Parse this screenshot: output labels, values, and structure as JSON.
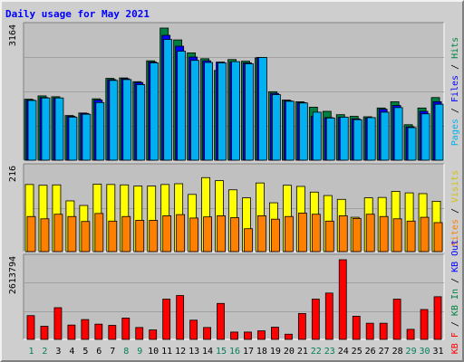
{
  "chart_data": [
    {
      "type": "bar",
      "title": "Daily usage for May 2021",
      "categories": [
        "1",
        "2",
        "3",
        "4",
        "5",
        "6",
        "7",
        "8",
        "9",
        "10",
        "11",
        "12",
        "13",
        "14",
        "15",
        "16",
        "17",
        "18",
        "19",
        "20",
        "21",
        "22",
        "23",
        "24",
        "25",
        "26",
        "27",
        "28",
        "29",
        "30",
        "31"
      ],
      "weekend_days": [
        "1",
        "2",
        "8",
        "9",
        "15",
        "16",
        "22",
        "23",
        "29",
        "30"
      ],
      "ymax_label": "3164",
      "ylim": [
        0,
        3164
      ],
      "y_axis_labels": [
        "Pages",
        "Files",
        "Hits"
      ],
      "series": [
        {
          "name": "Hits",
          "color": "#008040",
          "values": [
            1460,
            1540,
            1520,
            1070,
            1130,
            1470,
            1960,
            1970,
            1880,
            2380,
            3164,
            2880,
            2570,
            2430,
            2150,
            2410,
            2370,
            2450,
            1640,
            1440,
            1400,
            1270,
            1170,
            1090,
            1050,
            1040,
            1250,
            1400,
            850,
            1250,
            1500
          ]
        },
        {
          "name": "Files",
          "color": "#0000ff",
          "values": [
            1440,
            1500,
            1490,
            1050,
            1120,
            1440,
            1930,
            1950,
            1860,
            2350,
            2990,
            2730,
            2470,
            2380,
            2350,
            2350,
            2330,
            2460,
            1600,
            1420,
            1380,
            1050,
            1020,
            1030,
            990,
            1010,
            1220,
            1310,
            800,
            1170,
            1400
          ]
        },
        {
          "name": "Pages",
          "color": "#00b0f0",
          "values": [
            1430,
            1490,
            1490,
            1030,
            1100,
            1380,
            1910,
            1930,
            1810,
            2330,
            2890,
            2610,
            2390,
            2340,
            2330,
            2360,
            2310,
            2460,
            1570,
            1410,
            1370,
            1150,
            1010,
            1030,
            970,
            1020,
            1150,
            1260,
            780,
            1110,
            1340
          ]
        }
      ]
    },
    {
      "type": "bar",
      "ymax_label": "216",
      "ylim": [
        0,
        216
      ],
      "y_axis_labels": [
        "Visits",
        "Sites"
      ],
      "series": [
        {
          "name": "Visits",
          "color": "#ffff00",
          "values": [
            176,
            174,
            175,
            133,
            121,
            177,
            176,
            175,
            172,
            172,
            176,
            178,
            150,
            194,
            186,
            162,
            141,
            180,
            128,
            174,
            171,
            156,
            147,
            137,
            90,
            141,
            142,
            158,
            154,
            152,
            132
          ]
        },
        {
          "name": "Sites",
          "color": "#ff8000",
          "values": [
            92,
            86,
            98,
            92,
            79,
            100,
            80,
            92,
            82,
            82,
            94,
            97,
            88,
            91,
            94,
            89,
            60,
            94,
            85,
            92,
            101,
            98,
            80,
            94,
            87,
            98,
            92,
            86,
            80,
            90,
            76
          ]
        }
      ]
    },
    {
      "type": "bar",
      "ymax_label": "2613794",
      "ylim": [
        0,
        2613794
      ],
      "y_axis_labels": [
        "KB F",
        "KB In",
        "KB Out"
      ],
      "series": [
        {
          "name": "KB F",
          "color": "#ff0000",
          "values": [
            780000,
            430000,
            1040000,
            470000,
            650000,
            500000,
            460000,
            700000,
            390000,
            310000,
            1320000,
            1440000,
            630000,
            390000,
            1180000,
            240000,
            240000,
            280000,
            400000,
            170000,
            850000,
            1320000,
            1520000,
            2613794,
            760000,
            530000,
            530000,
            1320000,
            330000,
            980000,
            1400000
          ]
        }
      ]
    }
  ]
}
